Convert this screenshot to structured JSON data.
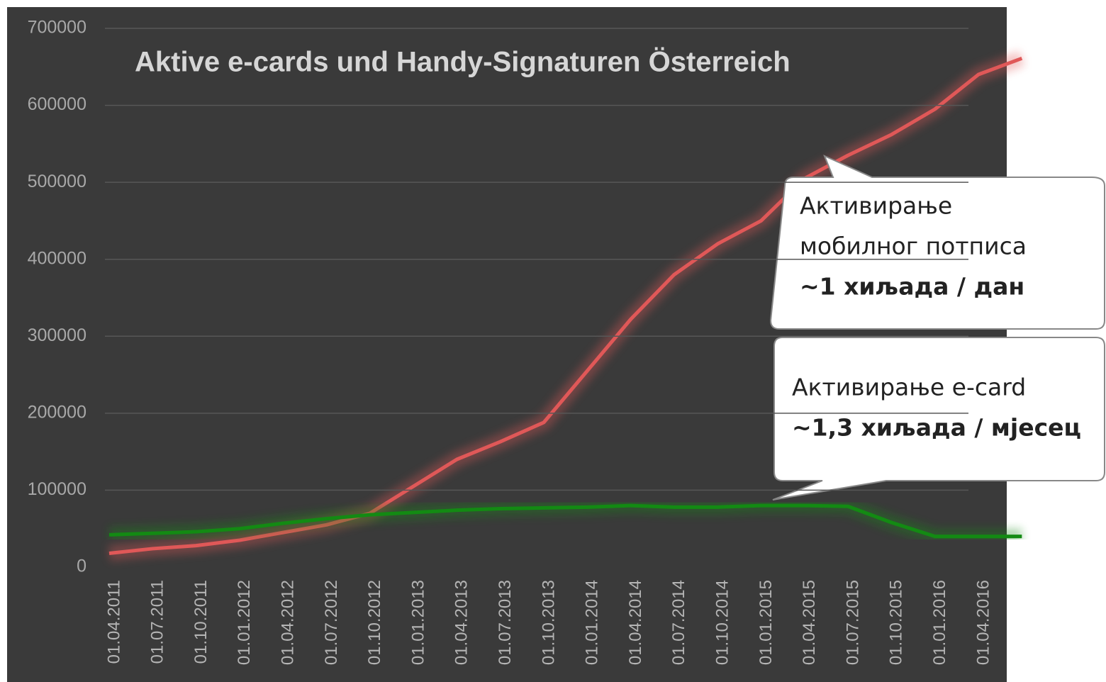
{
  "chart_data": {
    "type": "line",
    "title": "Aktive e-cards und Handy-Signaturen Österreich",
    "categories": [
      "01.04.2011",
      "01.07.2011",
      "01.10.2011",
      "01.01.2012",
      "01.04.2012",
      "01.07.2012",
      "01.10.2012",
      "01.01.2013",
      "01.04.2013",
      "01.07.2013",
      "01.10.2013",
      "01.01.2014",
      "01.04.2014",
      "01.07.2014",
      "01.10.2014",
      "01.01.2015",
      "01.04.2015",
      "01.07.2015",
      "01.10.2015",
      "01.01.2016",
      "01.04.2016",
      null
    ],
    "series": [
      {
        "color": "#e05858",
        "values": [
          18000,
          24000,
          28000,
          35000,
          45000,
          55000,
          70000,
          105000,
          140000,
          163000,
          188000,
          255000,
          322000,
          380000,
          420000,
          450000,
          505000,
          535000,
          562000,
          595000,
          640000,
          661000
        ]
      },
      {
        "color": "#138a13",
        "values": [
          42000,
          44000,
          46000,
          50000,
          57000,
          63000,
          68000,
          71000,
          74000,
          76000,
          77000,
          78000,
          80000,
          78000,
          78000,
          80000,
          80000,
          79000,
          58000,
          40000,
          40000,
          40000
        ]
      }
    ],
    "ylim": [
      0,
      700000
    ],
    "yticks": [
      0,
      100000,
      200000,
      300000,
      400000,
      500000,
      600000,
      700000
    ],
    "grid": true,
    "annotations": [
      {
        "lines": [
          "Активирање",
          "мобилног потписа",
          "~1 хиљада / дан"
        ]
      },
      {
        "lines": [
          "Активирање e-card",
          "~1,3 хиљада / мјесец"
        ]
      }
    ]
  }
}
